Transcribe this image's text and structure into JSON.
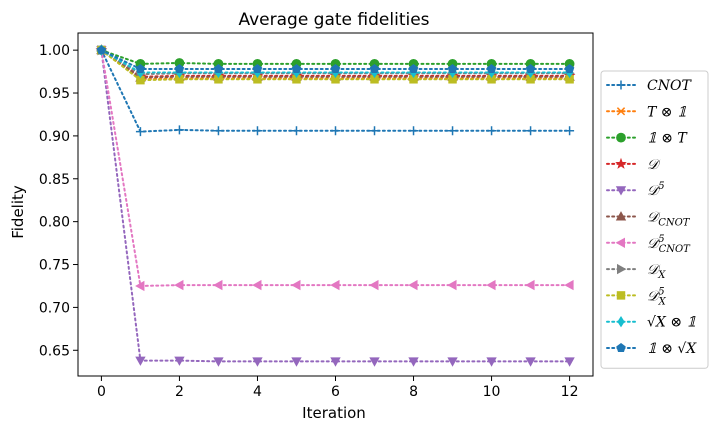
{
  "chart_data": {
    "type": "line",
    "title": "Average gate fidelities",
    "xlabel": "Iteration",
    "ylabel": "Fidelity",
    "xlim": [
      -0.6,
      12.6
    ],
    "ylim": [
      0.62,
      1.02
    ],
    "xticks": [
      0,
      2,
      4,
      6,
      8,
      10,
      12
    ],
    "yticks": [
      0.65,
      0.7,
      0.75,
      0.8,
      0.85,
      0.9,
      0.95,
      1.0
    ],
    "ytick_labels": [
      "0.65",
      "0.70",
      "0.75",
      "0.80",
      "0.85",
      "0.90",
      "0.95",
      "1.00"
    ],
    "x": [
      0,
      1,
      2,
      3,
      4,
      5,
      6,
      7,
      8,
      9,
      10,
      11,
      12
    ],
    "legend_position": "right, outside plot",
    "line_style": "dotted",
    "series": [
      {
        "name": "CNOT",
        "color": "#1f77b4",
        "marker": "plus",
        "values": [
          1.0,
          0.905,
          0.907,
          0.906,
          0.906,
          0.906,
          0.906,
          0.906,
          0.906,
          0.906,
          0.906,
          0.906,
          0.906
        ]
      },
      {
        "name": "T ⊗ 𝟙",
        "color": "#ff7f0e",
        "marker": "x",
        "values": [
          1.0,
          0.966,
          0.967,
          0.967,
          0.967,
          0.967,
          0.967,
          0.967,
          0.967,
          0.967,
          0.967,
          0.967,
          0.967
        ]
      },
      {
        "name": "𝟙 ⊗ T",
        "color": "#2ca02c",
        "marker": "circle",
        "values": [
          1.0,
          0.984,
          0.985,
          0.984,
          0.984,
          0.984,
          0.984,
          0.984,
          0.984,
          0.984,
          0.984,
          0.984,
          0.984
        ]
      },
      {
        "name": "𝒟",
        "color": "#d62728",
        "marker": "star",
        "values": [
          1.0,
          0.969,
          0.97,
          0.97,
          0.97,
          0.97,
          0.97,
          0.97,
          0.97,
          0.97,
          0.97,
          0.97,
          0.97
        ]
      },
      {
        "name": "𝒟",
        "sup": "5",
        "color": "#9467bd",
        "marker": "triangle-down",
        "values": [
          1.0,
          0.638,
          0.638,
          0.637,
          0.637,
          0.637,
          0.637,
          0.637,
          0.637,
          0.637,
          0.637,
          0.637,
          0.637
        ]
      },
      {
        "name": "𝒟",
        "sub": "CNOT",
        "color": "#8c564b",
        "marker": "triangle-up",
        "values": [
          1.0,
          0.968,
          0.969,
          0.969,
          0.969,
          0.969,
          0.969,
          0.969,
          0.969,
          0.969,
          0.969,
          0.969,
          0.969
        ]
      },
      {
        "name": "𝒟",
        "sup": "5",
        "sub": "CNOT",
        "color": "#e377c2",
        "marker": "triangle-left",
        "values": [
          1.0,
          0.725,
          0.726,
          0.726,
          0.726,
          0.726,
          0.726,
          0.726,
          0.726,
          0.726,
          0.726,
          0.726,
          0.726
        ]
      },
      {
        "name": "𝒟",
        "sub": "X",
        "color": "#7f7f7f",
        "marker": "triangle-right",
        "values": [
          1.0,
          0.972,
          0.973,
          0.973,
          0.973,
          0.973,
          0.973,
          0.973,
          0.973,
          0.973,
          0.973,
          0.973,
          0.973
        ]
      },
      {
        "name": "𝒟",
        "sup": "5",
        "sub": "X",
        "color": "#bcbd22",
        "marker": "square",
        "values": [
          1.0,
          0.965,
          0.966,
          0.966,
          0.966,
          0.966,
          0.966,
          0.966,
          0.966,
          0.966,
          0.966,
          0.966,
          0.966
        ]
      },
      {
        "name": "√X ⊗ 𝟙",
        "color": "#17becf",
        "marker": "diamond",
        "values": [
          1.0,
          0.974,
          0.974,
          0.974,
          0.974,
          0.974,
          0.974,
          0.974,
          0.974,
          0.974,
          0.974,
          0.974,
          0.974
        ]
      },
      {
        "name": "𝟙 ⊗ √X",
        "color": "#1f77b4",
        "marker": "pentagon",
        "values": [
          1.0,
          0.978,
          0.978,
          0.978,
          0.978,
          0.978,
          0.978,
          0.978,
          0.978,
          0.978,
          0.978,
          0.978,
          0.978
        ]
      }
    ]
  }
}
